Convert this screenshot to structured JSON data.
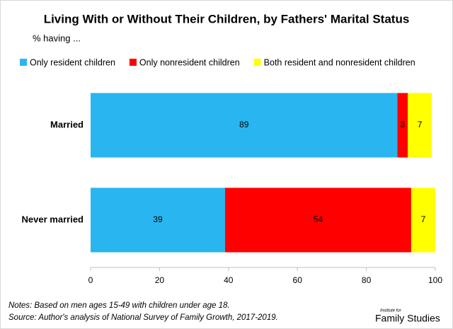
{
  "chart_data": {
    "type": "bar",
    "orientation": "horizontal",
    "stacked": true,
    "title": "Living With or Without Their Children, by Fathers' Marital Status",
    "subtitle": "% having ...",
    "categories": [
      "Married",
      "Never married"
    ],
    "series": [
      {
        "name": "Only resident children",
        "color": "#29b6f0",
        "values": [
          89,
          39
        ]
      },
      {
        "name": "Only nonresident children",
        "color": "#ff0000",
        "values": [
          3,
          54
        ]
      },
      {
        "name": "Both resident and nonresident children",
        "color": "#ffff00",
        "values": [
          7,
          7
        ]
      }
    ],
    "xlim": [
      0,
      100
    ],
    "xticks": [
      0,
      20,
      40,
      60,
      80,
      100
    ],
    "grid": false,
    "legend": "top",
    "notes": [
      "Notes: Based on men ages 15-49 with children under age 18.",
      "Source: Author's analysis of National Survey of Family Growth, 2017-2019."
    ],
    "logo": {
      "top": "Institute for",
      "main": "Family Studies"
    }
  }
}
